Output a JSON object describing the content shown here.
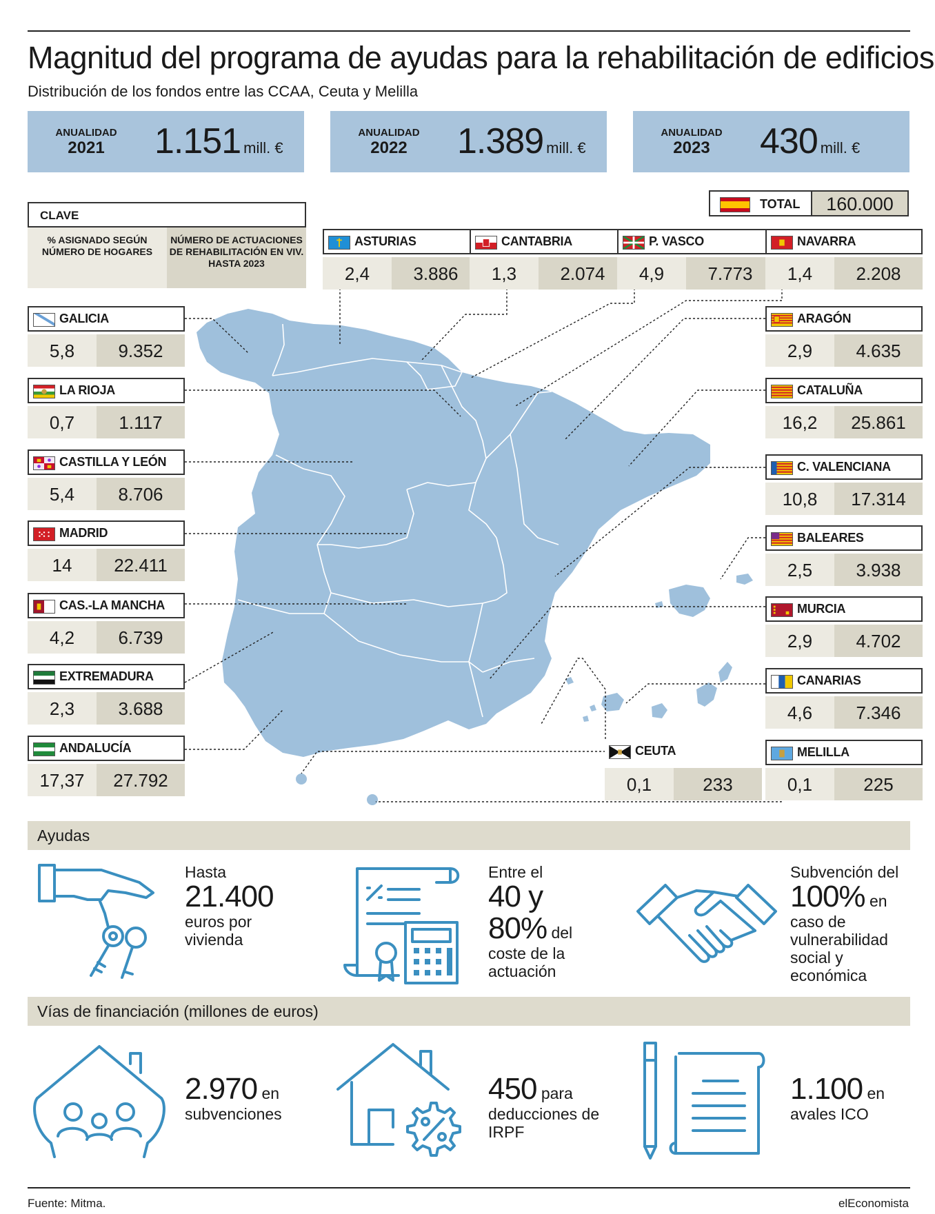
{
  "header": {
    "title": "Magnitud del programa de ayudas para la rehabilitación de edificios",
    "subtitle": "Distribución de los fondos entre las CCAA, Ceuta y Melilla"
  },
  "annuals": [
    {
      "label": "ANUALIDAD",
      "year": "2021",
      "value": "1.151",
      "unit": "mill. €"
    },
    {
      "label": "ANUALIDAD",
      "year": "2022",
      "value": "1.389",
      "unit": "mill. €"
    },
    {
      "label": "ANUALIDAD",
      "year": "2023",
      "value": "430",
      "unit": "mill. €"
    }
  ],
  "total": {
    "label": "TOTAL",
    "value": "160.000"
  },
  "clave": {
    "title": "CLAVE",
    "col1": "% ASIGNADO SEGÚN NÚMERO DE HOGARES",
    "col2": "NÚMERO DE ACTUACIONES DE REHABILITACIÓN EN VIV. HASTA 2023"
  },
  "regions": {
    "galicia": {
      "name": "GALICIA",
      "pct": "5,8",
      "count": "9.352"
    },
    "rioja": {
      "name": "LA RIOJA",
      "pct": "0,7",
      "count": "1.117"
    },
    "cyl": {
      "name": "CASTILLA Y LEÓN",
      "pct": "5,4",
      "count": "8.706"
    },
    "madrid": {
      "name": "MADRID",
      "pct": "14",
      "count": "22.411"
    },
    "clm": {
      "name": "CAS.-LA MANCHA",
      "pct": "4,2",
      "count": "6.739"
    },
    "extremadura": {
      "name": "EXTREMADURA",
      "pct": "2,3",
      "count": "3.688"
    },
    "andalucia": {
      "name": "ANDALUCÍA",
      "pct": "17,37",
      "count": "27.792"
    },
    "asturias": {
      "name": "ASTURIAS",
      "pct": "2,4",
      "count": "3.886"
    },
    "cantabria": {
      "name": "CANTABRIA",
      "pct": "1,3",
      "count": "2.074"
    },
    "pvasco": {
      "name": "P. VASCO",
      "pct": "4,9",
      "count": "7.773"
    },
    "navarra": {
      "name": "NAVARRA",
      "pct": "1,4",
      "count": "2.208"
    },
    "aragon": {
      "name": "ARAGÓN",
      "pct": "2,9",
      "count": "4.635"
    },
    "cataluna": {
      "name": "CATALUÑA",
      "pct": "16,2",
      "count": "25.861"
    },
    "cvalenciana": {
      "name": "C. VALENCIANA",
      "pct": "10,8",
      "count": "17.314"
    },
    "baleares": {
      "name": "BALEARES",
      "pct": "2,5",
      "count": "3.938"
    },
    "murcia": {
      "name": "MURCIA",
      "pct": "2,9",
      "count": "4.702"
    },
    "canarias": {
      "name": "CANARIAS",
      "pct": "4,6",
      "count": "7.346"
    },
    "ceuta": {
      "name": "CEUTA",
      "pct": "0,1",
      "count": "233"
    },
    "melilla": {
      "name": "MELILLA",
      "pct": "0,1",
      "count": "225"
    }
  },
  "ayudas": {
    "title": "Ayudas",
    "items": [
      {
        "pre": "Hasta",
        "big": "21.400",
        "post": "euros por vivienda"
      },
      {
        "pre": "Entre el",
        "big": "40 y",
        "big2": "80%",
        "inline": "del",
        "post": "coste de la actuación"
      },
      {
        "pre": "Subvención del",
        "big": "100%",
        "inline": "en",
        "post": "caso de vulnerabilidad social y económica"
      }
    ]
  },
  "financiacion": {
    "title": "Vías de financiación  (millones de euros)",
    "items": [
      {
        "big": "2.970",
        "inline": "en",
        "post": "subvenciones"
      },
      {
        "big": "450",
        "inline": "para",
        "post": "deducciones de IRPF"
      },
      {
        "big": "1.100",
        "inline": "en",
        "post": "avales ICO"
      }
    ]
  },
  "footer": {
    "source": "Fuente: Mitma.",
    "brand": "elEconomista"
  },
  "colors": {
    "map": "#9fc0dc",
    "accent_box": "#a9c4dc",
    "icon": "#3a8fc0",
    "light": "#eceae1",
    "dark": "#d9d6c8"
  }
}
